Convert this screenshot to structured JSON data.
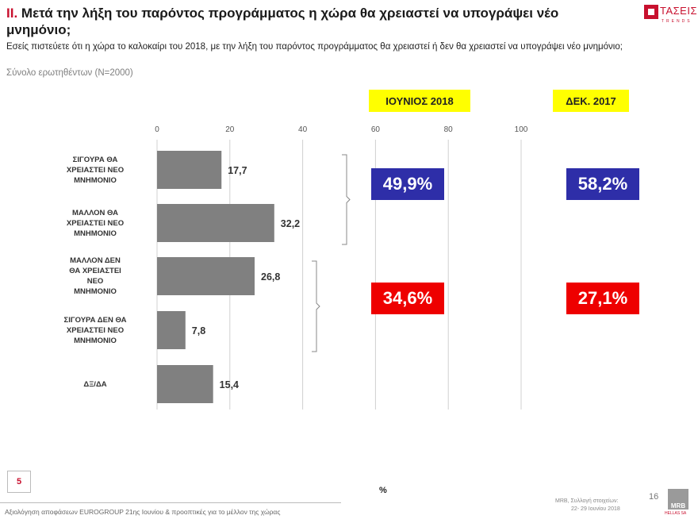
{
  "header": {
    "title_num": "II.",
    "title_text": "Μετά την λήξη του παρόντος προγράμματος η χώρα θα χρειαστεί να υπογράψει νέο μνημόνιο;",
    "question": "Εσείς πιστεύετε ότι η χώρα το καλοκαίρι του 2018, με την λήξη του παρόντος προγράμματος θα χρειαστεί ή δεν θα χρειαστεί να υπογράψει νέο μνημόνιο;",
    "base": "Σύνολο ερωτηθέντων (Ν=2000)"
  },
  "logo": {
    "text": "ΤΑΣΕΙΣ",
    "subtext": "TRENDS"
  },
  "chart_data": {
    "type": "bar",
    "orientation": "horizontal",
    "categories": [
      "ΣΙΓΟΥΡΑ ΘΑ ΧΡΕΙΑΣΤΕΙ ΝΕΟ ΜΝΗΜΟΝΙΟ",
      "ΜΑΛΛΟΝ ΘΑ ΧΡΕΙΑΣΤΕΙ ΝΕΟ ΜΝΗΜΟΝΙΟ",
      "ΜΑΛΛΟΝ ΔΕΝ ΘΑ ΧΡΕΙΑΣΤΕΙ ΝΕΟ ΜΝΗΜΟΝΙΟ",
      "ΣΙΓΟΥΡΑ ΔΕΝ ΘΑ ΧΡΕΙΑΣΤΕΙ ΝΕΟ ΜΝΗΜΟΝΙΟ",
      "ΔΞ/ΔΑ"
    ],
    "category_lines": [
      [
        "ΣΙΓΟΥΡΑ ΘΑ",
        "ΧΡΕΙΑΣΤΕΙ ΝΕΟ",
        "ΜΝΗΜΟΝΙΟ"
      ],
      [
        "ΜΑΛΛΟΝ ΘΑ",
        "ΧΡΕΙΑΣΤΕΙ ΝΕΟ",
        "ΜΝΗΜΟΝΙΟ"
      ],
      [
        "ΜΑΛΛΟΝ ΔΕΝ",
        "ΘΑ ΧΡΕΙΑΣΤΕΙ",
        "ΝΕΟ",
        "ΜΝΗΜΟΝΙΟ"
      ],
      [
        "ΣΙΓΟΥΡΑ ΔΕΝ ΘΑ",
        "ΧΡΕΙΑΣΤΕΙ ΝΕΟ",
        "ΜΝΗΜΟΝΙΟ"
      ],
      [
        "ΔΞ/ΔΑ"
      ]
    ],
    "values": [
      17.7,
      32.2,
      26.8,
      7.8,
      15.4
    ],
    "value_labels": [
      "17,7",
      "32,2",
      "26,8",
      "7,8",
      "15,4"
    ],
    "xlim": [
      0,
      100
    ],
    "xticks": [
      0,
      20,
      40,
      60,
      80,
      100
    ],
    "xlabel": "%",
    "bar_color": "#808080",
    "groups": [
      {
        "label": "ΙΟΥΝΙΟΣ 2018",
        "values": [
          "49,9%",
          "34,6%"
        ]
      },
      {
        "label": "ΔΕΚ. 2017",
        "values": [
          "58,2%",
          "27,1%"
        ]
      }
    ],
    "group_colors": {
      "yes": "#2e2ea8",
      "no": "#ee0000",
      "label_bg": "#ffff00"
    }
  },
  "footer": {
    "slide_tag": "5",
    "text": "Αξιολόγηση αποφάσεων EUROGROUP 21ης Ιουνίου & προοπτικές για το μέλλον της χώρας",
    "source_line1": "MRB, Συλλογή στοιχείων:",
    "source_line2": "22- 29 Ιουνίου 2018",
    "page_number": "16",
    "mrb_logo": "MRB",
    "mrb_sub": "HELLAS SA"
  }
}
